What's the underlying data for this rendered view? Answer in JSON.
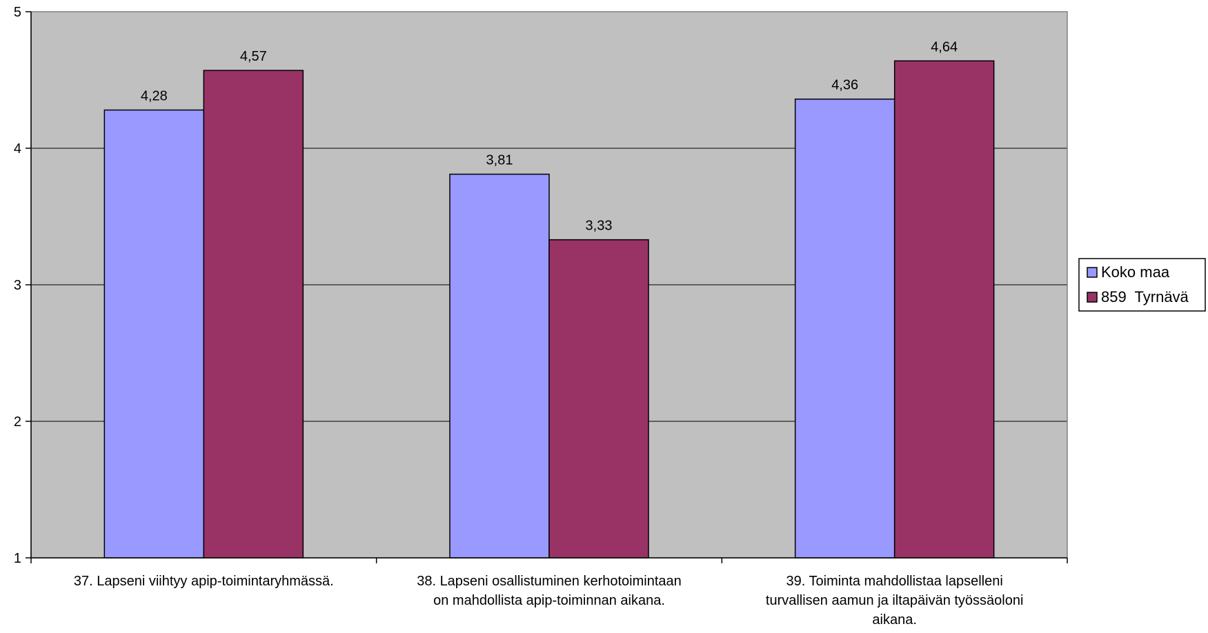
{
  "chart_data": {
    "type": "bar",
    "categories": [
      [
        "37. Lapseni viihtyy apip-toimintaryhmässä."
      ],
      [
        "38. Lapseni osallistuminen kerhotoimintaan",
        "on mahdollista apip-toiminnan aikana."
      ],
      [
        "39. Toiminta mahdollistaa lapselleni",
        "turvallisen aamun ja iltapäivän työssäoloni",
        "aikana."
      ]
    ],
    "series": [
      {
        "name": "Koko maa",
        "color": "#9999ff",
        "values": [
          4.28,
          3.81,
          4.36
        ],
        "labels": [
          "4,28",
          "3,81",
          "4,36"
        ]
      },
      {
        "name": "859  Tyrnävä",
        "color": "#993366",
        "values": [
          4.57,
          3.33,
          4.64
        ],
        "labels": [
          "4,57",
          "3,33",
          "4,64"
        ]
      }
    ],
    "ylim": [
      1,
      5
    ],
    "yticks": [
      1,
      2,
      3,
      4,
      5
    ],
    "ytick_labels": [
      "1",
      "2",
      "3",
      "4",
      "5"
    ],
    "plot_background": "#c0c0c0",
    "grid": true,
    "legend_position": "right",
    "title": "",
    "xlabel": "",
    "ylabel": ""
  }
}
